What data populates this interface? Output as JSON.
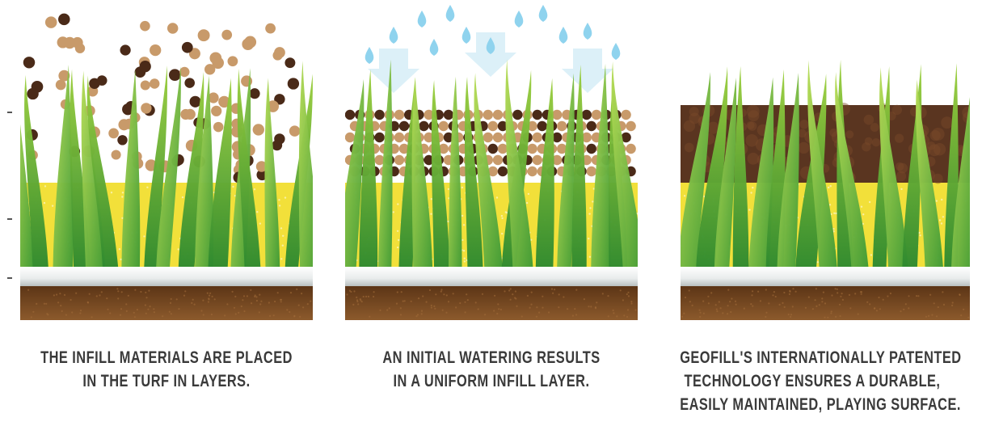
{
  "captions": [
    {
      "lines": [
        "THE INFILL MATERIALS ARE PLACED",
        "IN THE TURF IN LAYERS."
      ]
    },
    {
      "lines": [
        "AN INITIAL WATERING RESULTS",
        "IN A UNIFORM INFILL LAYER."
      ]
    },
    {
      "lines": [
        "GEOFILL'S INTERNATIONALLY PATENTED",
        "TECHNOLOGY ENSURES A DURABLE,",
        "EASILY MAINTAINED, PLAYING SURFACE."
      ]
    }
  ],
  "colors": {
    "grass_dark": "#2f8a2f",
    "grass_light": "#9ccf3d",
    "sand": "#f2e03a",
    "backing": "#ffffff",
    "soil": "#7a4a22",
    "infill_tan": "#c89a6a",
    "infill_dark": "#4a2a18",
    "water": "#8fd3ee",
    "settled_infill": "#5a3520"
  }
}
